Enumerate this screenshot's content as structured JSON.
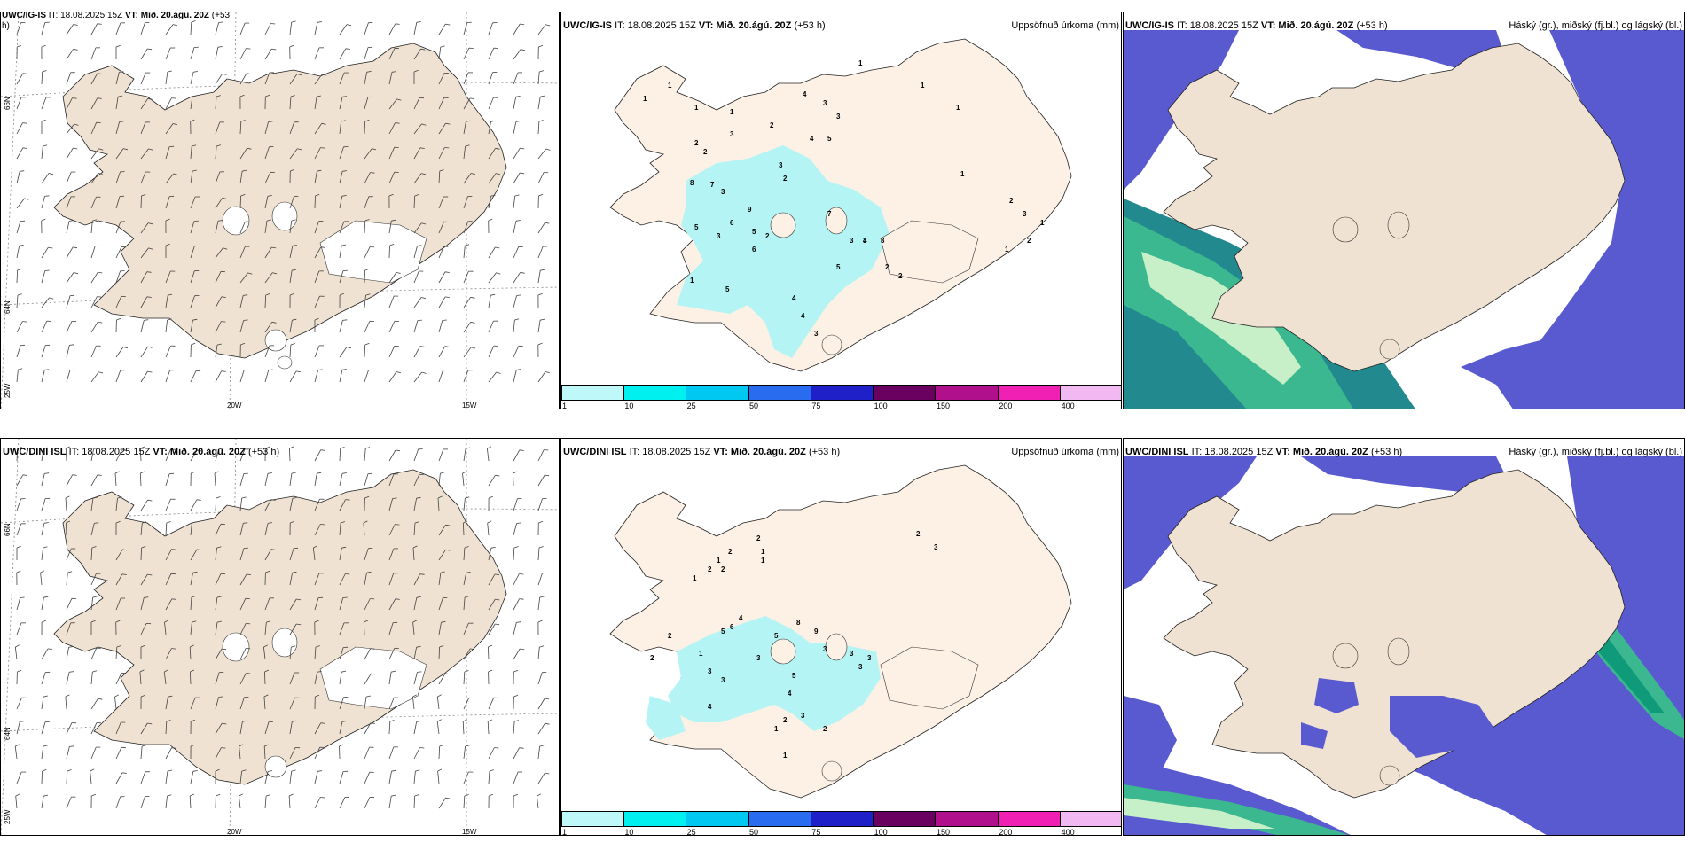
{
  "rows": [
    {
      "id": "top",
      "wind": {
        "model": "UWC/IG-IS",
        "it": "IT: 18.08.2025 15Z",
        "vt": "VT: Mið. 20.ágú. 20Z",
        "lead": "(+53",
        "lead2": "h)"
      },
      "precip": {
        "model": "UWC/IG-IS",
        "it": "IT: 18.08.2025 15Z",
        "vt": "VT: Mið. 20.ágú. 20Z",
        "lead": "(+53 h)",
        "field": "Uppsöfnuð úrkoma (mm)"
      },
      "cloud": {
        "model": "UWC/IG-IS",
        "it": "IT: 18.08.2025 15Z",
        "vt": "VT: Mið. 20.ágú. 20Z",
        "lead": "(+53 h)",
        "field": "Háský (gr.), miðský (fj.bl.) og lágský (bl.)"
      }
    },
    {
      "id": "bottom",
      "wind": {
        "model": "UWC/DINI ISL",
        "it": "IT: 18.08.2025 15Z",
        "vt": "VT: Mið. 20.ágú. 20Z",
        "lead": "(+53 h)",
        "lead2": ""
      },
      "precip": {
        "model": "UWC/DINI ISL",
        "it": "IT: 18.08.2025 15Z",
        "vt": "VT: Mið. 20.ágú. 20Z",
        "lead": "(+53 h)",
        "field": "Uppsöfnuð úrkoma (mm)"
      },
      "cloud": {
        "model": "UWC/DINI ISL",
        "it": "IT: 18.08.2025 15Z",
        "vt": "VT: Mið. 20.ágú. 20Z",
        "lead": "(+53 h)",
        "field": "Háský (gr.), miðský (fj.bl.) og lágský (bl.)"
      }
    }
  ],
  "axes": {
    "lat_labels": [
      "66N",
      "64N"
    ],
    "lon_labels": [
      "25W",
      "20W",
      "15W"
    ]
  },
  "colorbar": {
    "ticks": [
      "1",
      "10",
      "25",
      "50",
      "75",
      "100",
      "150",
      "200",
      "400"
    ],
    "colors": [
      "#bff8f8",
      "#00f0f0",
      "#00c8f0",
      "#2a6cf0",
      "#2020c8",
      "#6a0060",
      "#b0108c",
      "#f020b4",
      "#f2b8f2"
    ]
  },
  "palette": {
    "land": "#efe2d2",
    "land_precip": "#fdf0e4",
    "precip_light": "#b4f4f4",
    "low_cloud": "#5a5ad0",
    "mid_cloud": "#3cb890",
    "high_cloud": "#c8f0c8"
  },
  "precip_labels_top": [
    "1",
    "1",
    "1",
    "1",
    "2",
    "2",
    "3",
    "2",
    "4",
    "3",
    "3",
    "4",
    "5",
    "3",
    "2",
    "8",
    "7",
    "3",
    "9",
    "6",
    "5",
    "3",
    "5",
    "2",
    "6",
    "7",
    "5",
    "4",
    "5",
    "1",
    "3",
    "3",
    "3",
    "2",
    "2",
    "4",
    "3",
    "4",
    "1",
    "1",
    "1",
    "1",
    "2",
    "3",
    "2",
    "1",
    "1"
  ],
  "precip_labels_bottom": [
    "1",
    "2",
    "2",
    "2",
    "1",
    "2",
    "1",
    "2",
    "2",
    "1",
    "5",
    "6",
    "5",
    "4",
    "9",
    "3",
    "3",
    "3",
    "8",
    "5",
    "4",
    "3",
    "3",
    "3",
    "3",
    "2",
    "1",
    "3",
    "2",
    "1",
    "4",
    "1",
    "2",
    "3"
  ]
}
